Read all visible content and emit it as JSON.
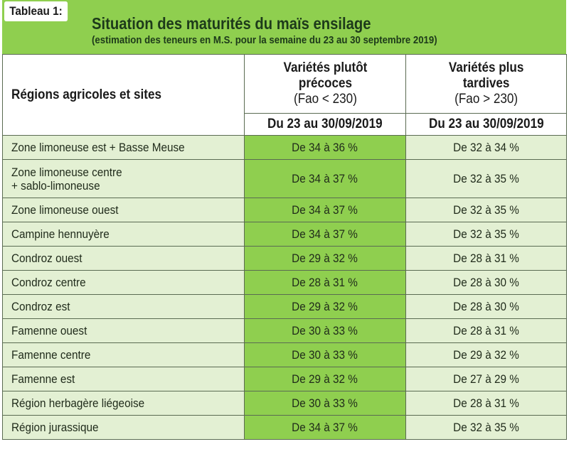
{
  "table_label": "Tableau 1:",
  "title": "Situation des maturités du maïs ensilage",
  "subtitle": "(estimation des teneurs en M.S. pour la semaine du 23 au 30 septembre 2019)",
  "header": {
    "region_col": "Régions agricoles et sites",
    "early": {
      "line1": "Variétés plutôt",
      "line2": "précoces",
      "line3": "(Fao < 230)"
    },
    "late": {
      "line1": "Variétés plus",
      "line2": "tardives",
      "line3": "(Fao > 230)"
    },
    "date_early": "Du 23 au 30/09/2019",
    "date_late": "Du 23 au 30/09/2019"
  },
  "rows": [
    {
      "region": "Zone limoneuse est + Basse Meuse",
      "early": "De 34 à 36 %",
      "late": "De 32 à 34 %"
    },
    {
      "region_line1": "Zone limoneuse centre",
      "region_line2": "+ sablo-limoneuse",
      "early": "De 34 à 37 %",
      "late": "De 32 à 35 %"
    },
    {
      "region": "Zone limoneuse ouest",
      "early": "De 34 à 37 %",
      "late": "De 32 à 35 %"
    },
    {
      "region": "Campine hennuyère",
      "early": "De 34 à 37 %",
      "late": "De 32 à 35 %"
    },
    {
      "region": "Condroz ouest",
      "early": "De 29 à 32 %",
      "late": "De 28 à 31 %"
    },
    {
      "region": "Condroz centre",
      "early": "De 28 à 31 %",
      "late": "De 28 à 30 %"
    },
    {
      "region": "Condroz est",
      "early": "De 29 à 32 %",
      "late": "De 28 à 30 %"
    },
    {
      "region": "Famenne ouest",
      "early": "De 30 à 33 %",
      "late": "De 28 à 31 %"
    },
    {
      "region": "Famenne centre",
      "early": "De 30 à 33 %",
      "late": "De 29 à 32 %"
    },
    {
      "region": "Famenne est",
      "early": "De 29 à 32 %",
      "late": "De 27 à 29 %"
    },
    {
      "region": "Région herbagère liégeoise",
      "early": "De 30 à 33 %",
      "late": "De 28 à 31 %"
    },
    {
      "region": "Région jurassique",
      "early": "De 34 à 37 %",
      "late": "De 32 à 35 %"
    }
  ],
  "colors": {
    "banner": "#8fcf4f",
    "early_column": "#8fcf4f",
    "light_rows": "#e3f0d3",
    "border": "#5a6b52"
  }
}
